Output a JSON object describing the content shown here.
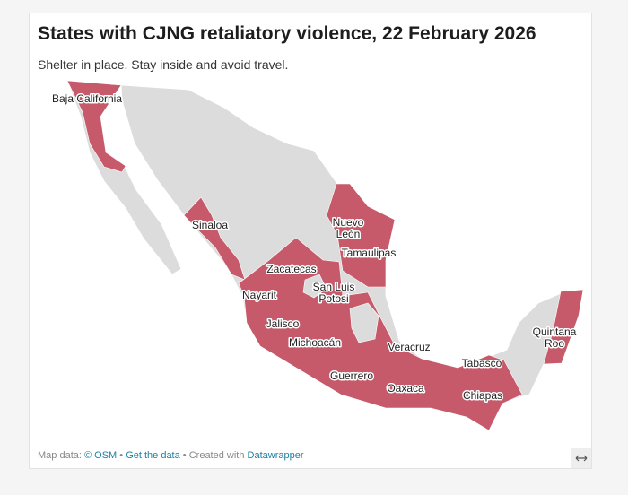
{
  "header": {
    "title": "States with CJNG retaliatory violence, 22 February 2026",
    "subtitle": "Shelter in place. Stay inside and avoid travel."
  },
  "map": {
    "labels": [
      {
        "lines": [
          "Baja California"
        ]
      },
      {
        "lines": [
          "Sinaloa"
        ]
      },
      {
        "lines": [
          "Nuevo",
          "León"
        ]
      },
      {
        "lines": [
          "Tamaulipas"
        ]
      },
      {
        "lines": [
          "Zacatecas"
        ]
      },
      {
        "lines": [
          "San Luis",
          "Potosi"
        ]
      },
      {
        "lines": [
          "Nayarit"
        ]
      },
      {
        "lines": [
          "Jalisco"
        ]
      },
      {
        "lines": [
          "Michoacán"
        ]
      },
      {
        "lines": [
          "Veracruz"
        ]
      },
      {
        "lines": [
          "Tabasco"
        ]
      },
      {
        "lines": [
          "Quintana",
          "Roo"
        ]
      },
      {
        "lines": [
          "Guerrero"
        ]
      },
      {
        "lines": [
          "Oaxaca"
        ]
      },
      {
        "lines": [
          "Chiapas"
        ]
      }
    ]
  },
  "footer": {
    "map_data": "Map data:",
    "osm": "© OSM",
    "separator": "•",
    "get_data": "Get the data",
    "created": "Created with",
    "datawrapper": "Datawrapper"
  }
}
